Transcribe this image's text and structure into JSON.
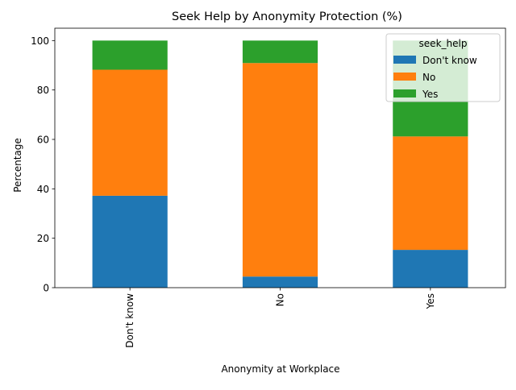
{
  "chart_data": {
    "type": "bar",
    "stacked": true,
    "title": "Seek Help by Anonymity Protection (%)",
    "xlabel": "Anonymity at Workplace",
    "ylabel": "Percentage",
    "categories": [
      "Don't know",
      "No",
      "Yes"
    ],
    "series": [
      {
        "name": "Don't know",
        "color": "#1f77b4",
        "values": [
          37.2,
          4.5,
          15.3
        ]
      },
      {
        "name": "No",
        "color": "#ff7f0e",
        "values": [
          51.0,
          86.4,
          45.9
        ]
      },
      {
        "name": "Yes",
        "color": "#2ca02c",
        "values": [
          11.8,
          9.1,
          38.8
        ]
      }
    ],
    "ylim": [
      0,
      105
    ],
    "yticks": [
      0,
      20,
      40,
      60,
      80,
      100
    ],
    "legend": {
      "title": "seek_help",
      "placement": "top-right"
    },
    "grid": false
  }
}
